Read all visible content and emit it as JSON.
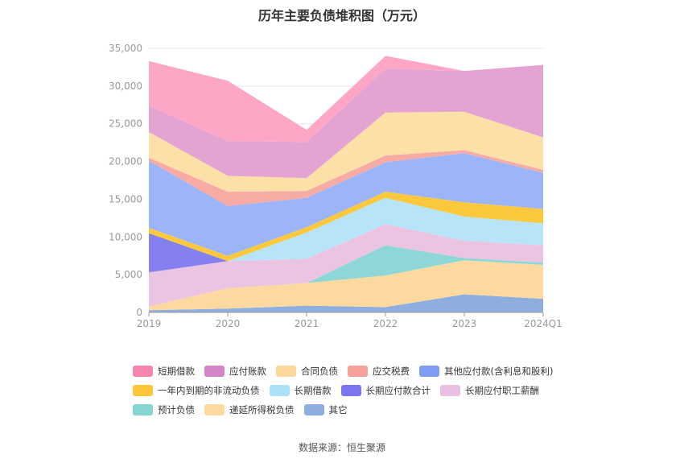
{
  "chart_data": {
    "type": "area",
    "stacked": true,
    "title": "历年主要负债堆积图（万元）",
    "categories": [
      "2019",
      "2020",
      "2021",
      "2022",
      "2023",
      "2024Q1"
    ],
    "ylim": [
      0,
      35000
    ],
    "yticks": [
      "0",
      "5,000",
      "10,000",
      "15,000",
      "20,000",
      "25,000",
      "30,000",
      "35,000"
    ],
    "grid": true,
    "legend_position": "bottom",
    "series": [
      {
        "name": "其它",
        "color": "#8eaee0",
        "values": [
          300,
          500,
          900,
          700,
          2400,
          1800
        ]
      },
      {
        "name": "递延所得税负债",
        "color": "#fdd9a0",
        "values": [
          500,
          2700,
          3000,
          4200,
          4500,
          4500
        ]
      },
      {
        "name": "预计负债",
        "color": "#8dd8d6",
        "values": [
          0,
          0,
          0,
          4000,
          300,
          300
        ]
      },
      {
        "name": "长期应付职工薪酬",
        "color": "#ebc4e2",
        "values": [
          4500,
          3600,
          3200,
          2800,
          2300,
          2300
        ]
      },
      {
        "name": "长期应付款合计",
        "color": "#8580f0",
        "values": [
          5200,
          0,
          0,
          0,
          0,
          0
        ]
      },
      {
        "name": "长期借款",
        "color": "#b8e4fa",
        "values": [
          0,
          0,
          3500,
          3500,
          3200,
          2900
        ]
      },
      {
        "name": "一年内到期的非流动负债",
        "color": "#fcc83c",
        "values": [
          700,
          700,
          700,
          800,
          1900,
          1900
        ]
      },
      {
        "name": "其他应付款(含利息和股利)",
        "color": "#9cb5f8",
        "values": [
          8900,
          6600,
          3900,
          3900,
          6500,
          4800
        ]
      },
      {
        "name": "应交税费",
        "color": "#f8aaa4",
        "values": [
          400,
          1900,
          900,
          900,
          400,
          400
        ]
      },
      {
        "name": "合同负债",
        "color": "#fddfa8",
        "values": [
          3400,
          2100,
          1700,
          5700,
          5100,
          4300
        ]
      },
      {
        "name": "应付账款",
        "color": "#e3a4d2",
        "values": [
          3500,
          4600,
          4800,
          5800,
          5400,
          9600
        ]
      },
      {
        "name": "短期借款",
        "color": "#fda6c6",
        "values": [
          5900,
          8000,
          1600,
          1700,
          0,
          0
        ]
      }
    ],
    "legend_order": [
      "短期借款",
      "应付账款",
      "合同负债",
      "应交税费",
      "其他应付款(含利息和股利)",
      "一年内到期的非流动负债",
      "长期借款",
      "长期应付款合计",
      "长期应付职工薪酬",
      "预计负债",
      "递延所得税负债",
      "其它"
    ]
  },
  "source_text": "数据来源：恒生聚源",
  "colors": {
    "legend": {
      "短期借款": "#f585ae",
      "应付账款": "#d584c8",
      "合同负债": "#fcd89a",
      "应交税费": "#f5a098",
      "其他应付款(含利息和股利)": "#7d9cf2",
      "一年内到期的非流动负债": "#fcc63a",
      "长期借款": "#ade0fa",
      "长期应付款合计": "#7b76ee",
      "长期应付职工薪酬": "#e8bfe0",
      "预计负债": "#86d6d4",
      "递延所得税负债": "#fdd9a0",
      "其它": "#8eaee0"
    }
  }
}
